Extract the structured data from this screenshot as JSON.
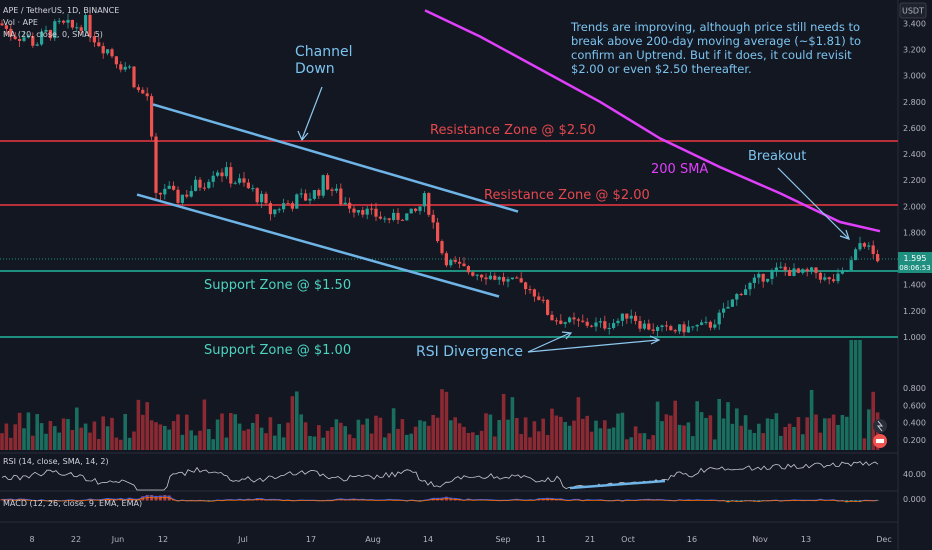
{
  "symbol": {
    "pair": "APE / TetherUS, 1D, BINANCE",
    "vol": "Vol · APE",
    "ma": "MA (20, close, 0, SMA, 5)"
  },
  "currency": "USDT",
  "price_label": {
    "price": "1.595",
    "countdown": "08:06:53"
  },
  "annotations": {
    "note": [
      "Trends are improving, although price still needs to",
      "break above 200-day moving average (~$1.81) to",
      "confirm an Uptrend. But if it does, it could revisit",
      "$2.00 or even $2.50 thereafter."
    ],
    "channel": [
      "Channel",
      "Down"
    ],
    "res250": "Resistance Zone @ $2.50",
    "res200": "Resistance Zone @ $2.00",
    "sma200": "200 SMA",
    "breakout": "Breakout",
    "sup150": "Support Zone @ $1.50",
    "sup100": "Support Zone @ $1.00",
    "rsidiv": "RSI Divergence"
  },
  "rsi_label": "RSI (14, close, SMA, 14, 2)",
  "macd_label": "MACD (12, 26, close, 9, EMA, EMA)",
  "colors": {
    "up": "#26a69a",
    "down": "#ef5350",
    "vol_up": "#1a6e5f",
    "vol_down": "#8b2a33",
    "sma": "#e040fb",
    "channel": "#6fb4e6",
    "resistance": "#b72f3a",
    "support": "#1f8f80",
    "text_blue": "#7cc4f0",
    "text_red": "#e5484d",
    "text_teal": "#4dd4c0"
  },
  "chart_data": {
    "type": "candlestick",
    "x_ticks": [
      "8",
      "22",
      "Jun",
      "12",
      "Jul",
      "17",
      "Aug",
      "14",
      "Sep",
      "11",
      "21",
      "Oct",
      "16",
      "Nov",
      "13",
      "Dec"
    ],
    "y_ticks": [
      "3.400",
      "3.200",
      "3.000",
      "2.800",
      "2.600",
      "2.400",
      "2.200",
      "2.000",
      "1.800",
      "1.400",
      "1.200",
      "1.000"
    ],
    "vol_ticks": [
      "0.800",
      "0.600",
      "0.400",
      "0.200"
    ],
    "rsi_ticks": [
      "40.00"
    ],
    "macd_ticks": [
      "0.000"
    ],
    "ylim": [
      0.95,
      3.45
    ],
    "support_levels": [
      1.5,
      1.0
    ],
    "resistance_levels": [
      2.5,
      2.0
    ],
    "last_price": 1.595,
    "close_path": [
      [
        0,
        3.4
      ],
      [
        12,
        3.32
      ],
      [
        24,
        3.3
      ],
      [
        36,
        3.25
      ],
      [
        48,
        3.33
      ],
      [
        60,
        3.38
      ],
      [
        72,
        3.36
      ],
      [
        84,
        3.42
      ],
      [
        96,
        3.28
      ],
      [
        108,
        3.2
      ],
      [
        120,
        3.1
      ],
      [
        130,
        3.05
      ],
      [
        138,
        2.88
      ],
      [
        148,
        2.84
      ],
      [
        156,
        2.05
      ],
      [
        165,
        2.15
      ],
      [
        175,
        2.05
      ],
      [
        185,
        2.1
      ],
      [
        195,
        2.15
      ],
      [
        205,
        2.2
      ],
      [
        215,
        2.3
      ],
      [
        225,
        2.25
      ],
      [
        235,
        2.2
      ],
      [
        245,
        2.15
      ],
      [
        258,
        2.08
      ],
      [
        270,
        1.95
      ],
      [
        285,
        2.02
      ],
      [
        300,
        2.05
      ],
      [
        315,
        2.1
      ],
      [
        325,
        2.2
      ],
      [
        340,
        2.05
      ],
      [
        355,
        2.0
      ],
      [
        370,
        1.95
      ],
      [
        385,
        1.9
      ],
      [
        400,
        1.92
      ],
      [
        415,
        1.95
      ],
      [
        425,
        2.05
      ],
      [
        430,
        1.95
      ],
      [
        436,
        1.8
      ],
      [
        444,
        1.6
      ],
      [
        455,
        1.55
      ],
      [
        470,
        1.5
      ],
      [
        490,
        1.47
      ],
      [
        510,
        1.42
      ],
      [
        525,
        1.4
      ],
      [
        540,
        1.3
      ],
      [
        550,
        1.15
      ],
      [
        565,
        1.12
      ],
      [
        585,
        1.1
      ],
      [
        605,
        1.09
      ],
      [
        620,
        1.13
      ],
      [
        630,
        1.19
      ],
      [
        640,
        1.1
      ],
      [
        655,
        1.06
      ],
      [
        670,
        1.05
      ],
      [
        690,
        1.07
      ],
      [
        710,
        1.09
      ],
      [
        725,
        1.2
      ],
      [
        740,
        1.35
      ],
      [
        760,
        1.45
      ],
      [
        780,
        1.52
      ],
      [
        800,
        1.48
      ],
      [
        815,
        1.5
      ],
      [
        828,
        1.42
      ],
      [
        838,
        1.45
      ],
      [
        848,
        1.52
      ],
      [
        856,
        1.65
      ],
      [
        862,
        1.75
      ],
      [
        868,
        1.68
      ],
      [
        876,
        1.6
      ]
    ],
    "sma_path": [
      [
        425,
        3.5
      ],
      [
        480,
        3.3
      ],
      [
        540,
        3.05
      ],
      [
        600,
        2.8
      ],
      [
        660,
        2.52
      ],
      [
        720,
        2.3
      ],
      [
        780,
        2.1
      ],
      [
        840,
        1.88
      ],
      [
        880,
        1.81
      ]
    ],
    "channel_upper": [
      [
        153,
        2.78
      ],
      [
        518,
        1.96
      ]
    ],
    "channel_lower": [
      [
        137,
        2.09
      ],
      [
        499,
        1.31
      ]
    ],
    "rsi_divergence_price": [
      [
        528,
        1.01
      ],
      [
        572,
        1.06
      ],
      [
        572,
        1.06
      ],
      [
        658,
        1.0
      ]
    ],
    "rsi_divergence_rsi": [
      [
        570,
        488
      ],
      [
        665,
        481
      ]
    ],
    "breakout_arrow": [
      [
        778,
        170
      ],
      [
        848,
        240
      ]
    ],
    "channel_arrow": [
      [
        322,
        87
      ],
      [
        300,
        140
      ]
    ]
  }
}
